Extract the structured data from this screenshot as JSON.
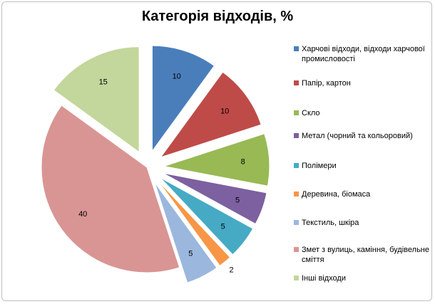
{
  "chart_data": {
    "type": "pie",
    "title": "Категорія відходів, %",
    "legend_position": "right",
    "slices": [
      {
        "label": "Харчові відходи, відходи харчової промисловості",
        "value": 10,
        "color": "#4a7ebb",
        "exploded": true
      },
      {
        "label": "Папір, картон",
        "value": 10,
        "color": "#be4b48",
        "exploded": true
      },
      {
        "label": "Скло",
        "value": 8,
        "color": "#98b954",
        "exploded": true
      },
      {
        "label": "Метал (чорний та кольоровий)",
        "value": 5,
        "color": "#7d60a0",
        "exploded": true
      },
      {
        "label": "Полімери",
        "value": 5,
        "color": "#46aac5",
        "exploded": true
      },
      {
        "label": "Деревина, біомаса",
        "value": 2,
        "color": "#f79646",
        "exploded": true
      },
      {
        "label": "Текстиль, шкіра",
        "value": 5,
        "color": "#9bb7dd",
        "exploded": true
      },
      {
        "label": "Змет з вулиць, каміння, будівельне сміття",
        "value": 40,
        "color": "#d99594",
        "exploded": false
      },
      {
        "label": "Інші відходи",
        "value": 15,
        "color": "#c3d69b",
        "exploded": true
      }
    ]
  }
}
